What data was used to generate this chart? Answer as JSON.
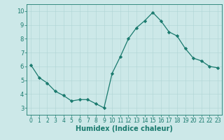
{
  "x": [
    0,
    1,
    2,
    3,
    4,
    5,
    6,
    7,
    8,
    9,
    10,
    11,
    12,
    13,
    14,
    15,
    16,
    17,
    18,
    19,
    20,
    21,
    22,
    23
  ],
  "y": [
    6.1,
    5.2,
    4.8,
    4.2,
    3.9,
    3.5,
    3.6,
    3.6,
    3.3,
    3.0,
    5.5,
    6.7,
    8.0,
    8.8,
    9.3,
    9.9,
    9.3,
    8.5,
    8.2,
    7.3,
    6.6,
    6.4,
    6.0,
    5.9
  ],
  "xlabel": "Humidex (Indice chaleur)",
  "ylim": [
    2.5,
    10.5
  ],
  "xlim": [
    -0.5,
    23.5
  ],
  "yticks": [
    3,
    4,
    5,
    6,
    7,
    8,
    9,
    10
  ],
  "xticks": [
    0,
    1,
    2,
    3,
    4,
    5,
    6,
    7,
    8,
    9,
    10,
    11,
    12,
    13,
    14,
    15,
    16,
    17,
    18,
    19,
    20,
    21,
    22,
    23
  ],
  "line_color": "#1a7a6e",
  "marker_color": "#1a7a6e",
  "bg_color": "#cce8e8",
  "grid_color": "#aed4d4",
  "axis_color": "#1a7a6e",
  "tick_color": "#1a7a6e",
  "label_color": "#1a7a6e",
  "xlabel_fontsize": 7,
  "tick_fontsize": 6,
  "xlabel_fontweight": "bold"
}
